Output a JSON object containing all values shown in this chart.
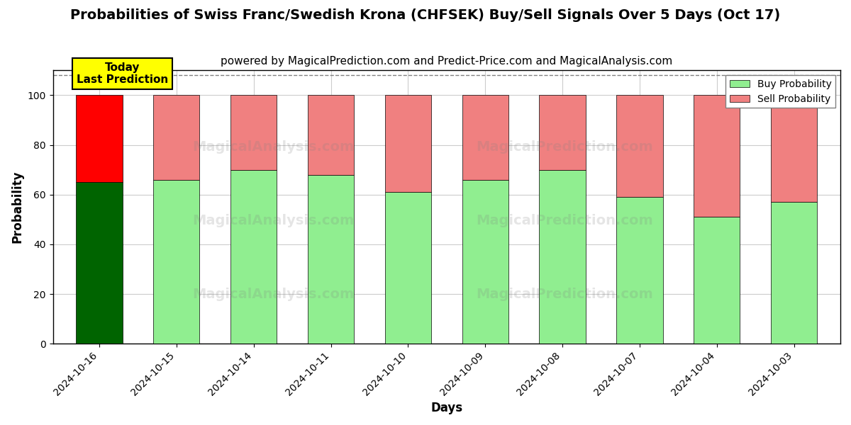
{
  "title": "Probabilities of Swiss Franc/Swedish Krona (CHFSEK) Buy/Sell Signals Over 5 Days (Oct 17)",
  "subtitle": "powered by MagicalPrediction.com and Predict-Price.com and MagicalAnalysis.com",
  "xlabel": "Days",
  "ylabel": "Probability",
  "categories": [
    "2024-10-16",
    "2024-10-15",
    "2024-10-14",
    "2024-10-11",
    "2024-10-10",
    "2024-10-09",
    "2024-10-08",
    "2024-10-07",
    "2024-10-04",
    "2024-10-03"
  ],
  "buy_values": [
    65,
    66,
    70,
    68,
    61,
    66,
    70,
    59,
    51,
    57
  ],
  "sell_values": [
    35,
    34,
    30,
    32,
    39,
    34,
    30,
    41,
    49,
    43
  ],
  "today_buy_color": "#006400",
  "today_sell_color": "#ff0000",
  "buy_color": "#90ee90",
  "sell_color": "#f08080",
  "today_annotation_bg": "#ffff00",
  "today_annotation_text": "Today\nLast Prediction",
  "ylim": [
    0,
    110
  ],
  "yticks": [
    0,
    20,
    40,
    60,
    80,
    100
  ],
  "dashed_line_y": 108,
  "legend_buy_label": "Buy Probability",
  "legend_sell_label": "Sell Probability",
  "background_color": "#ffffff",
  "grid_color": "#cccccc",
  "bar_width": 0.6,
  "title_fontsize": 14,
  "subtitle_fontsize": 11
}
